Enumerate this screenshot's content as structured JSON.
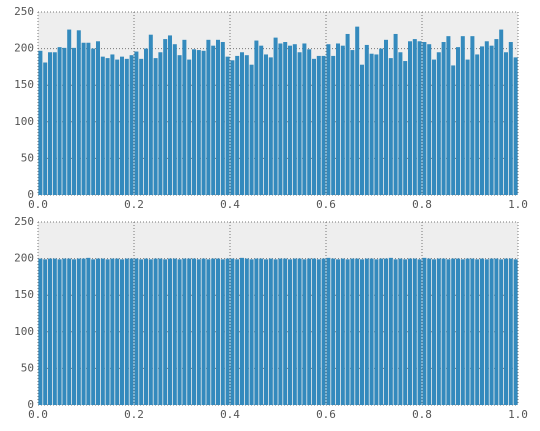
{
  "chart_data": [
    {
      "type": "histogram",
      "color": "#348abd",
      "grid": true,
      "bins": [
        0,
        0.01,
        0.02,
        0.03,
        0.04,
        0.05,
        0.06,
        0.07,
        0.08,
        0.09,
        0.1,
        0.11,
        0.12,
        0.13,
        0.14,
        0.15,
        0.16,
        0.17,
        0.18,
        0.19,
        0.2,
        0.21,
        0.22,
        0.23,
        0.24,
        0.25,
        0.26,
        0.27,
        0.28,
        0.29,
        0.3,
        0.31,
        0.32,
        0.33,
        0.34,
        0.35,
        0.36,
        0.37,
        0.38,
        0.39,
        0.4,
        0.41,
        0.42,
        0.43,
        0.44,
        0.45,
        0.46,
        0.47,
        0.48,
        0.49,
        0.5,
        0.51,
        0.52,
        0.53,
        0.54,
        0.55,
        0.56,
        0.57,
        0.58,
        0.59,
        0.6,
        0.61,
        0.62,
        0.63,
        0.64,
        0.65,
        0.66,
        0.67,
        0.68,
        0.69,
        0.7,
        0.71,
        0.72,
        0.73,
        0.74,
        0.75,
        0.76,
        0.77,
        0.78,
        0.79,
        0.8,
        0.81,
        0.82,
        0.83,
        0.84,
        0.85,
        0.86,
        0.87,
        0.88,
        0.89,
        0.9,
        0.91,
        0.92,
        0.93,
        0.94,
        0.95,
        0.96,
        0.97,
        0.98,
        0.99,
        1
      ],
      "values": [
        197,
        181,
        195,
        195,
        202,
        201,
        226,
        201,
        225,
        208,
        208,
        200,
        210,
        189,
        187,
        192,
        185,
        189,
        186,
        191,
        196,
        186,
        200,
        219,
        187,
        195,
        213,
        218,
        206,
        191,
        212,
        185,
        199,
        198,
        197,
        212,
        204,
        212,
        209,
        189,
        184,
        190,
        195,
        191,
        178,
        211,
        204,
        192,
        188,
        215,
        207,
        209,
        204,
        206,
        195,
        207,
        199,
        186,
        190,
        190,
        206,
        190,
        207,
        204,
        220,
        198,
        230,
        178,
        205,
        193,
        192,
        200,
        212,
        187,
        220,
        195,
        183,
        210,
        213,
        210,
        209,
        206,
        185,
        195,
        209,
        217,
        177,
        202,
        217,
        185,
        217,
        192,
        203,
        210,
        204,
        213,
        226,
        195,
        209,
        188
      ],
      "xlim": [
        0,
        1
      ],
      "xticks": [
        {
          "value": 0,
          "label": "0.0"
        },
        0.2,
        0.4,
        0.6,
        0.8,
        {
          "value": 1,
          "label": "1.0"
        }
      ],
      "ylim": [
        0,
        250
      ],
      "yticks": [
        0,
        50,
        100,
        150,
        200,
        250
      ]
    },
    {
      "type": "histogram",
      "color": "#348abd",
      "grid": true,
      "bins": [
        0,
        0.01,
        0.02,
        0.03,
        0.04,
        0.05,
        0.06,
        0.07,
        0.08,
        0.09,
        0.1,
        0.11,
        0.12,
        0.13,
        0.14,
        0.15,
        0.16,
        0.17,
        0.18,
        0.19,
        0.2,
        0.21,
        0.22,
        0.23,
        0.24,
        0.25,
        0.26,
        0.27,
        0.28,
        0.29,
        0.3,
        0.31,
        0.32,
        0.33,
        0.34,
        0.35,
        0.36,
        0.37,
        0.38,
        0.39,
        0.4,
        0.41,
        0.42,
        0.43,
        0.44,
        0.45,
        0.46,
        0.47,
        0.48,
        0.49,
        0.5,
        0.51,
        0.52,
        0.53,
        0.54,
        0.55,
        0.56,
        0.57,
        0.58,
        0.59,
        0.6,
        0.61,
        0.62,
        0.63,
        0.64,
        0.65,
        0.66,
        0.67,
        0.68,
        0.69,
        0.7,
        0.71,
        0.72,
        0.73,
        0.74,
        0.75,
        0.76,
        0.77,
        0.78,
        0.79,
        0.8,
        0.81,
        0.82,
        0.83,
        0.84,
        0.85,
        0.86,
        0.87,
        0.88,
        0.89,
        0.9,
        0.91,
        0.92,
        0.93,
        0.94,
        0.95,
        0.96,
        0.97,
        0.98,
        0.99,
        1
      ],
      "values": [
        200,
        199,
        200,
        200,
        199,
        200,
        200,
        199,
        200,
        200,
        201,
        199,
        200,
        200,
        199,
        200,
        200,
        199,
        200,
        200,
        200,
        199,
        200,
        199,
        200,
        200,
        199,
        200,
        200,
        199,
        200,
        200,
        200,
        199,
        200,
        199,
        200,
        200,
        199,
        200,
        200,
        199,
        201,
        200,
        199,
        200,
        200,
        199,
        200,
        199,
        200,
        200,
        199,
        200,
        200,
        199,
        200,
        200,
        199,
        200,
        201,
        200,
        199,
        200,
        199,
        200,
        200,
        199,
        200,
        200,
        199,
        200,
        200,
        201,
        199,
        200,
        199,
        200,
        200,
        199,
        201,
        200,
        199,
        200,
        200,
        199,
        200,
        200,
        199,
        200,
        200,
        199,
        200,
        199,
        200,
        200,
        199,
        200,
        200,
        199
      ],
      "xlim": [
        0,
        1
      ],
      "xticks": [
        {
          "value": 0,
          "label": "0.0"
        },
        0.2,
        0.4,
        0.6,
        0.8,
        {
          "value": 1,
          "label": "1.0"
        }
      ],
      "ylim": [
        0,
        250
      ],
      "yticks": [
        0,
        50,
        100,
        150,
        200,
        250
      ]
    }
  ]
}
